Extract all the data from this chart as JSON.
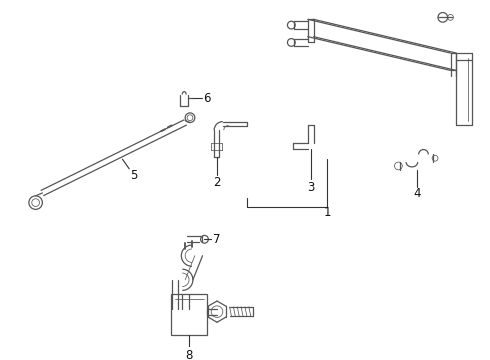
{
  "background_color": "#ffffff",
  "line_color": "#555555",
  "label_color": "#111111",
  "figsize": [
    4.9,
    3.6
  ],
  "dpi": 100,
  "lw": 0.9,
  "lw_thin": 0.55,
  "font_size": 8.5
}
